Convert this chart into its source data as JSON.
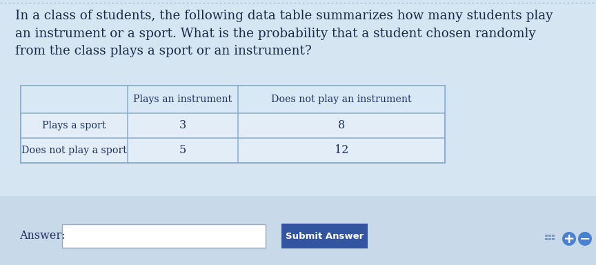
{
  "question_text": "In a class of students, the following data table summarizes how many students play\nan instrument or a sport. What is the probability that a student chosen randomly\nfrom the class plays a sport or an instrument?",
  "question_fontsize": 13.2,
  "question_color": "#1a2a4a",
  "table_header": [
    "",
    "Plays an instrument",
    "Does not play an instrument"
  ],
  "table_rows": [
    [
      "Plays a sport",
      "3",
      "8"
    ],
    [
      "Does not play a sport",
      "5",
      "12"
    ]
  ],
  "answer_label": "Answer:",
  "submit_label": "Submit Answer",
  "bg_color": "#d5e5f2",
  "table_bg": "#e2edf7",
  "header_bg": "#d8e8f4",
  "border_color": "#8aabcc",
  "text_color": "#1e3060",
  "submit_bg": "#3355a0",
  "submit_text_color": "#ffffff",
  "answer_box_bg": "#ffffff",
  "top_border_color": "#a8bfd0",
  "bottom_section_bg": "#c8daea"
}
